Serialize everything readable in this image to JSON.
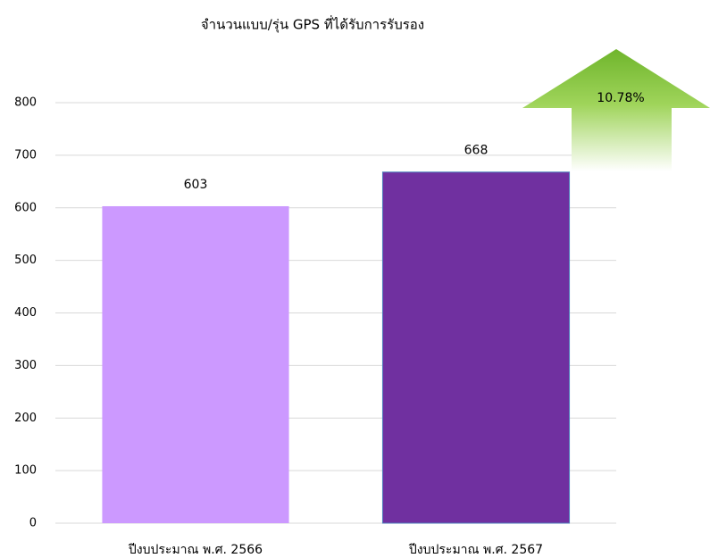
{
  "chart_data": {
    "type": "bar",
    "title": "จำนวนแบบ/รุ่น GPS ที่ได้รับการรับรอง",
    "categories": [
      "ปีงบประมาณ พ.ศ. 2566",
      "ปีงบประมาณ พ.ศ. 2567"
    ],
    "values": [
      603,
      668
    ],
    "colors": [
      "#cc99ff",
      "#7030a0"
    ],
    "ylim": [
      0,
      800
    ],
    "yticks": [
      0,
      100,
      200,
      300,
      400,
      500,
      600,
      700,
      800
    ],
    "grid": true,
    "annotation": "10.78%"
  }
}
